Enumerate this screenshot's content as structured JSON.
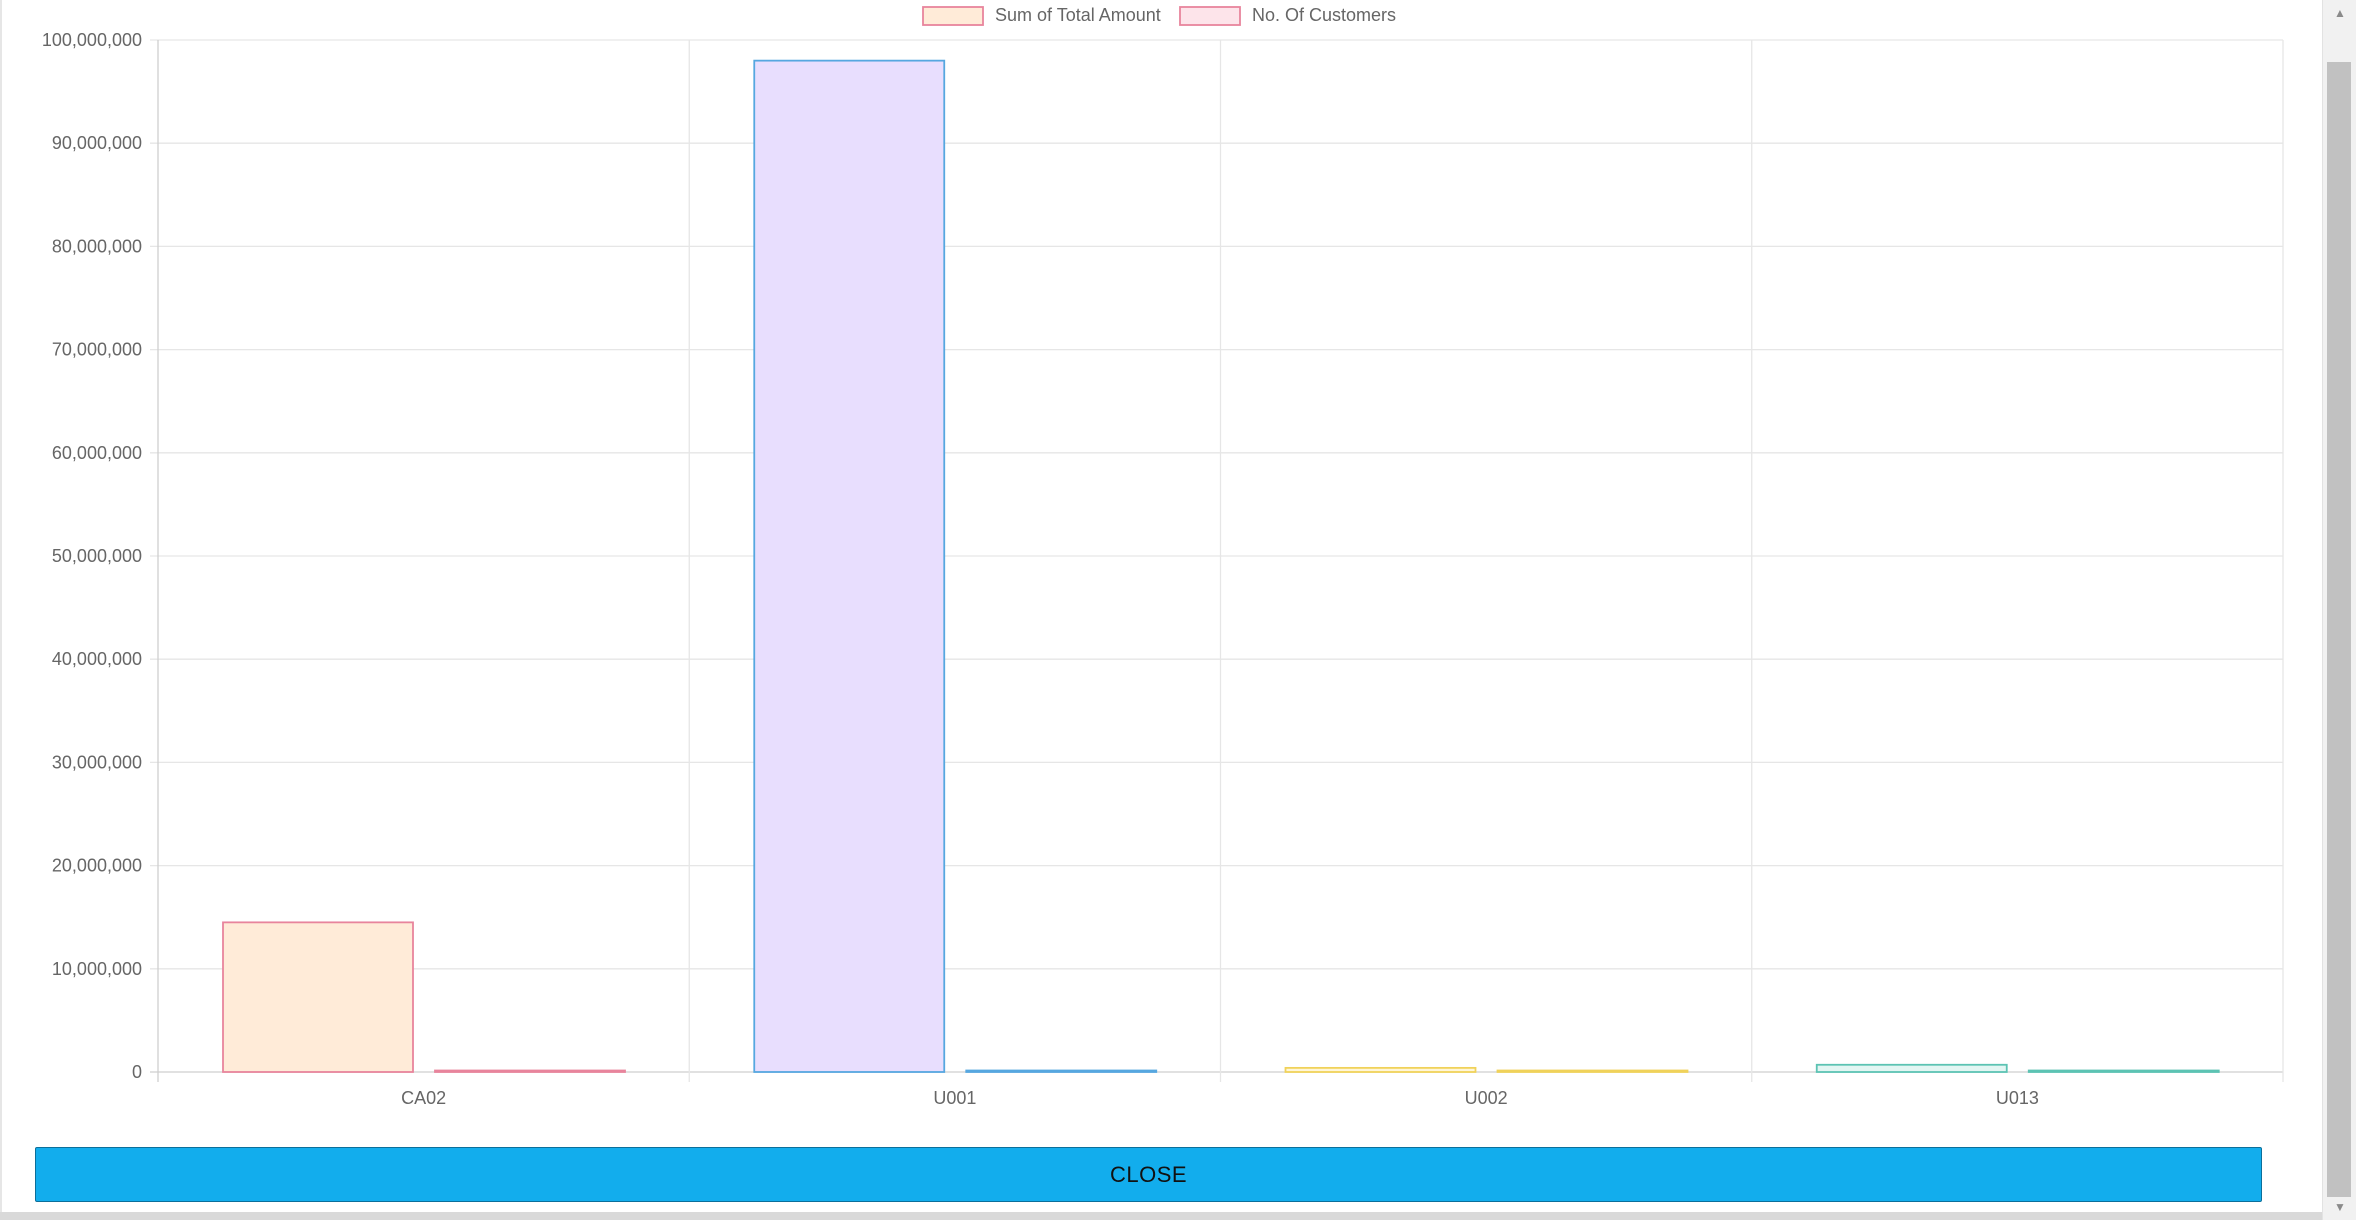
{
  "chart_data": {
    "type": "bar",
    "categories": [
      "CA02",
      "U001",
      "U002",
      "U013"
    ],
    "series": [
      {
        "name": "Sum of Total Amount",
        "values": [
          14500000,
          98000000,
          400000,
          700000
        ]
      },
      {
        "name": "No. Of Customers",
        "values": [
          120,
          150,
          60,
          90
        ]
      }
    ],
    "bar_colors": [
      {
        "fill": "#ffebd8",
        "stroke": "#e8849c"
      },
      {
        "fill": "#e8defe",
        "stroke": "#56a7e0"
      },
      {
        "fill": "#fff6d9",
        "stroke": "#f0d25a"
      },
      {
        "fill": "#e3f6f3",
        "stroke": "#5cc3b3"
      }
    ],
    "legend": [
      {
        "label": "Sum of Total Amount",
        "fill": "#ffebd8",
        "stroke": "#e8849c"
      },
      {
        "label": "No. Of Customers",
        "fill": "#fde4ea",
        "stroke": "#e8849c"
      }
    ],
    "legend_position": "top",
    "ylim": [
      0,
      100000000
    ],
    "yticks": [
      "0",
      "10,000,000",
      "20,000,000",
      "30,000,000",
      "40,000,000",
      "50,000,000",
      "60,000,000",
      "70,000,000",
      "80,000,000",
      "90,000,000",
      "100,000,000"
    ],
    "grid": true
  },
  "close_label": "CLOSE",
  "scroll": {
    "up_icon": "▲",
    "down_icon": "▼"
  }
}
